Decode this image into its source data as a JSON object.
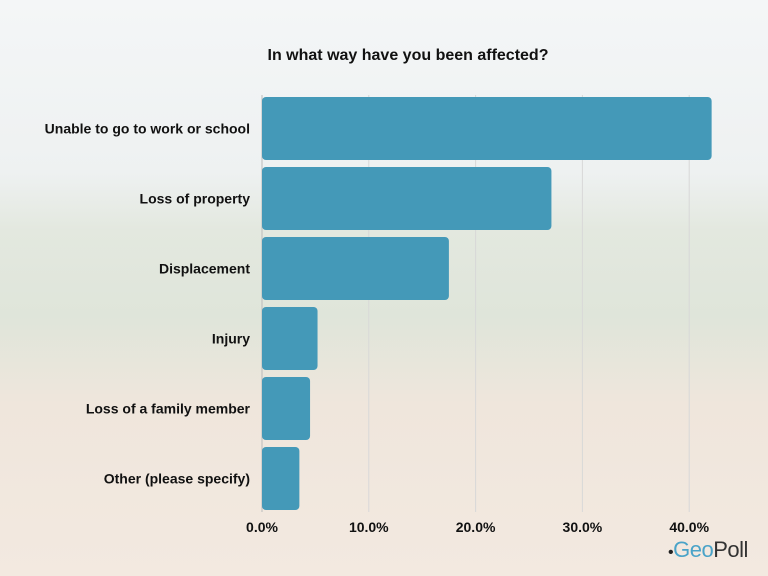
{
  "chart_data": {
    "type": "bar",
    "orientation": "horizontal",
    "title": "In what way have you been affected?",
    "categories": [
      "Unable to go to work or school",
      "Loss of property",
      "Displacement",
      "Injury",
      "Loss of a family member",
      "Other (please specify)"
    ],
    "values": [
      42.1,
      27.1,
      17.5,
      5.2,
      4.5,
      3.5
    ],
    "xlim": [
      0,
      42
    ],
    "xticks": [
      "0.0%",
      "10.0%",
      "20.0%",
      "30.0%",
      "40.0%"
    ],
    "xtick_values": [
      0,
      10,
      20,
      30,
      40
    ],
    "grid": true,
    "bar_color": "#4499b8"
  },
  "logo": {
    "text_a": "Geo",
    "text_b": "Poll"
  }
}
